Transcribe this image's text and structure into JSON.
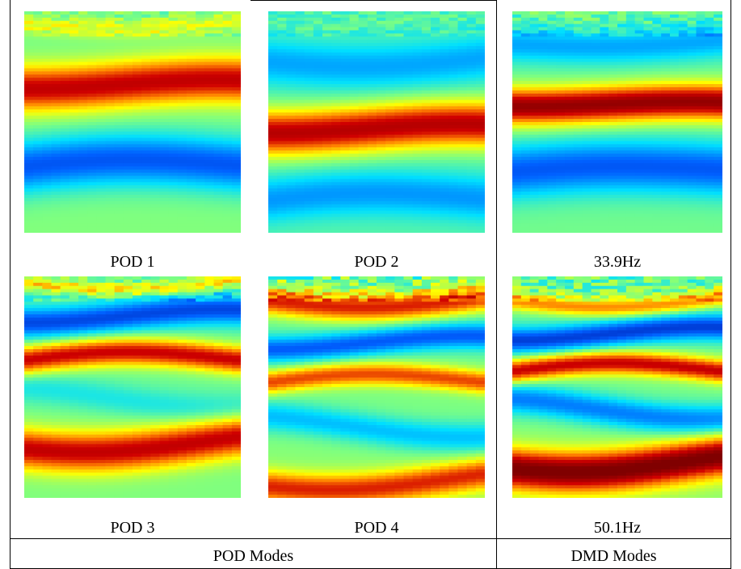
{
  "colormap": [
    "#00008f",
    "#0060ff",
    "#00dfff",
    "#7fff7f",
    "#ffff00",
    "#ff8000",
    "#d00000",
    "#800000"
  ],
  "table": {
    "pod_header": "POD Modes",
    "dmd_header": "DMD Modes"
  },
  "panels": [
    {
      "id": "pod1",
      "caption": "POD 1",
      "group": "pod",
      "field": {
        "type": "bands",
        "bands": [
          {
            "y": 0.05,
            "v": 0.55,
            "w": 0.04
          },
          {
            "y": 0.33,
            "v": 0.88,
            "w": 0.1
          },
          {
            "y": 0.7,
            "v": 0.12,
            "w": 0.12
          }
        ],
        "base": 0.42,
        "bottom": 0.46,
        "top_noise": 0.06,
        "wave": 0.03
      }
    },
    {
      "id": "pod2",
      "caption": "POD 2",
      "group": "pod",
      "field": {
        "type": "bands",
        "bands": [
          {
            "y": 0.22,
            "v": 0.22,
            "w": 0.1
          },
          {
            "y": 0.53,
            "v": 0.9,
            "w": 0.1
          },
          {
            "y": 0.85,
            "v": 0.2,
            "w": 0.1
          }
        ],
        "base": 0.38,
        "bottom": 0.4,
        "top_noise": 0.05,
        "wave": 0.03
      }
    },
    {
      "id": "dmd1",
      "caption": "33.9Hz",
      "group": "dmd",
      "field": {
        "type": "bands",
        "bands": [
          {
            "y": 0.14,
            "v": 0.22,
            "w": 0.08
          },
          {
            "y": 0.42,
            "v": 0.96,
            "w": 0.08
          },
          {
            "y": 0.72,
            "v": 0.12,
            "w": 0.12
          }
        ],
        "base": 0.4,
        "bottom": 0.45,
        "top_noise": 0.07,
        "wave": 0.02
      }
    },
    {
      "id": "pod3",
      "caption": "POD 3",
      "group": "pod",
      "field": {
        "type": "bands",
        "bands": [
          {
            "y": 0.02,
            "v": 0.6,
            "w": 0.03
          },
          {
            "y": 0.18,
            "v": 0.1,
            "w": 0.07
          },
          {
            "y": 0.38,
            "v": 0.86,
            "w": 0.06
          },
          {
            "y": 0.55,
            "v": 0.3,
            "w": 0.07
          },
          {
            "y": 0.75,
            "v": 0.86,
            "w": 0.09
          }
        ],
        "base": 0.4,
        "bottom": 0.5,
        "top_noise": 0.08,
        "wave": 0.04
      }
    },
    {
      "id": "pod4",
      "caption": "POD 4",
      "group": "pod",
      "field": {
        "type": "bands",
        "bands": [
          {
            "y": 0.1,
            "v": 0.82,
            "w": 0.06
          },
          {
            "y": 0.3,
            "v": 0.12,
            "w": 0.06
          },
          {
            "y": 0.48,
            "v": 0.76,
            "w": 0.05
          },
          {
            "y": 0.68,
            "v": 0.22,
            "w": 0.07
          },
          {
            "y": 0.92,
            "v": 0.78,
            "w": 0.07
          }
        ],
        "base": 0.4,
        "bottom": 0.55,
        "top_noise": 0.12,
        "wave": 0.04
      }
    },
    {
      "id": "dmd2",
      "caption": "50.1Hz",
      "group": "dmd",
      "field": {
        "type": "bands",
        "bands": [
          {
            "y": 0.1,
            "v": 0.7,
            "w": 0.04
          },
          {
            "y": 0.26,
            "v": 0.08,
            "w": 0.06
          },
          {
            "y": 0.43,
            "v": 0.86,
            "w": 0.05
          },
          {
            "y": 0.6,
            "v": 0.15,
            "w": 0.07
          },
          {
            "y": 0.84,
            "v": 0.98,
            "w": 0.09
          }
        ],
        "base": 0.4,
        "bottom": 0.55,
        "top_noise": 0.1,
        "wave": 0.04
      }
    }
  ]
}
